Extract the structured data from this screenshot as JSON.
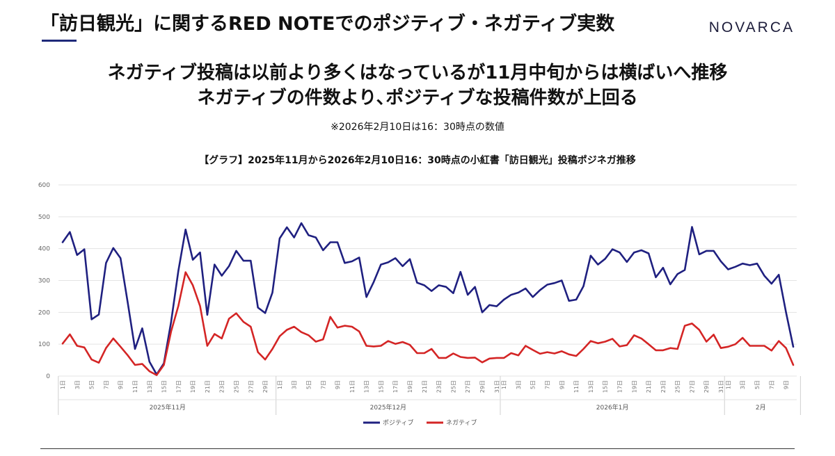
{
  "header": {
    "title": "「訪日観光」に関するRED NOTEでのポジティブ・ネガティブ実数",
    "brand": "NOVARCA"
  },
  "headline": {
    "line1": "ネガティブ投稿は以前より多くはなっているが11月中旬からは横ばいへ推移",
    "line2": "ネガティブの件数より､ポジティブな投稿件数が上回る"
  },
  "note": "※2026年2月10日は16：30時点の数値",
  "chart_data": {
    "type": "line",
    "title": "【グラフ】2025年11月から2026年2月10日16：30時点の小紅書「訪日観光」投稿ポジネガ推移",
    "ylim": [
      0,
      600
    ],
    "yticks": [
      0,
      100,
      200,
      300,
      400,
      500,
      600
    ],
    "grid": true,
    "legend_position": "bottom",
    "months": [
      {
        "label": "2025年11月",
        "days": 30
      },
      {
        "label": "2025年12月",
        "days": 31
      },
      {
        "label": "2026年1月",
        "days": 31
      },
      {
        "label": "2月",
        "days": 10
      }
    ],
    "series": [
      {
        "name": "ポジティブ",
        "color": "#1f2080",
        "values": [
          420,
          452,
          380,
          398,
          178,
          193,
          355,
          402,
          370,
          230,
          85,
          150,
          45,
          5,
          40,
          170,
          330,
          460,
          365,
          388,
          192,
          350,
          315,
          345,
          393,
          362,
          362,
          215,
          198,
          262,
          432,
          467,
          435,
          480,
          442,
          435,
          395,
          420,
          420,
          355,
          360,
          372,
          248,
          295,
          350,
          357,
          370,
          345,
          367,
          293,
          285,
          267,
          285,
          280,
          260,
          327,
          255,
          280,
          200,
          223,
          219,
          240,
          255,
          262,
          275,
          248,
          270,
          287,
          292,
          300,
          236,
          240,
          282,
          378,
          350,
          368,
          398,
          388,
          358,
          388,
          395,
          385,
          310,
          340,
          288,
          320,
          333,
          468,
          382,
          393,
          393,
          360,
          335,
          343,
          353,
          348,
          353,
          315,
          290,
          318,
          200,
          92
        ]
      },
      {
        "name": "ネガティブ",
        "color": "#d42525",
        "values": [
          102,
          131,
          95,
          90,
          52,
          42,
          88,
          118,
          92,
          65,
          35,
          38,
          15,
          3,
          35,
          140,
          220,
          326,
          285,
          220,
          95,
          132,
          118,
          180,
          197,
          170,
          155,
          75,
          52,
          85,
          125,
          145,
          155,
          138,
          128,
          108,
          115,
          186,
          152,
          158,
          155,
          140,
          95,
          93,
          95,
          110,
          101,
          107,
          98,
          72,
          72,
          85,
          57,
          57,
          71,
          60,
          57,
          58,
          43,
          55,
          57,
          57,
          72,
          65,
          95,
          82,
          70,
          75,
          71,
          78,
          68,
          63,
          85,
          110,
          103,
          108,
          117,
          93,
          97,
          128,
          118,
          100,
          81,
          81,
          88,
          85,
          158,
          165,
          145,
          108,
          130,
          88,
          92,
          100,
          120,
          95,
          95,
          95,
          80,
          110,
          88,
          35
        ]
      }
    ]
  }
}
